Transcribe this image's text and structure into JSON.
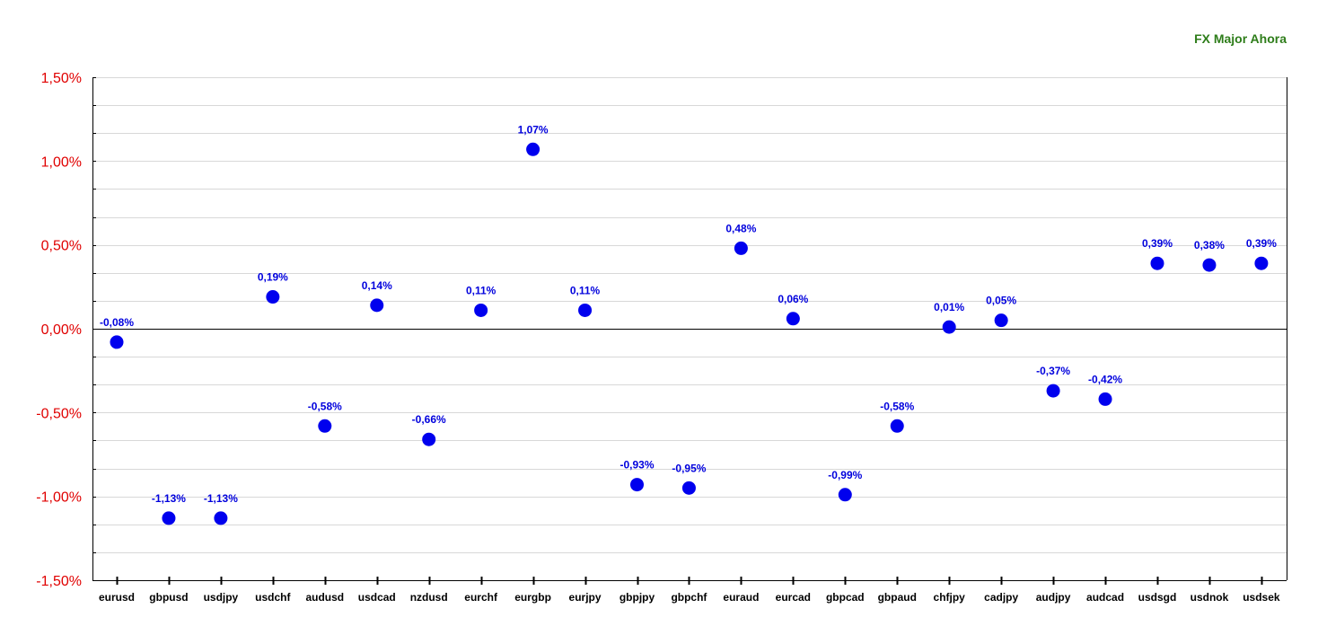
{
  "chart_data": {
    "type": "scatter",
    "title": "FX Major Ahora",
    "xlabel": "",
    "ylabel": "",
    "categories": [
      "eurusd",
      "gbpusd",
      "usdjpy",
      "usdchf",
      "audusd",
      "usdcad",
      "nzdusd",
      "eurchf",
      "eurgbp",
      "eurjpy",
      "gbpjpy",
      "gbpchf",
      "euraud",
      "eurcad",
      "gbpcad",
      "gbpaud",
      "chfjpy",
      "cadjpy",
      "audjpy",
      "audcad",
      "usdsgd",
      "usdnok",
      "usdsek"
    ],
    "values": [
      -0.08,
      -1.13,
      -1.13,
      0.19,
      -0.58,
      0.14,
      -0.66,
      0.11,
      1.07,
      0.11,
      -0.93,
      -0.95,
      0.48,
      0.06,
      -0.99,
      -0.58,
      0.01,
      0.05,
      -0.37,
      -0.42,
      0.39,
      0.38,
      0.39
    ],
    "value_labels": [
      "-0,08%",
      "-1,13%",
      "-1,13%",
      "0,19%",
      "-0,58%",
      "0,14%",
      "-0,66%",
      "0,11%",
      "1,07%",
      "0,11%",
      "-0,93%",
      "-0,95%",
      "0,48%",
      "0,06%",
      "-0,99%",
      "-0,58%",
      "0,01%",
      "0,05%",
      "-0,37%",
      "-0,42%",
      "0,39%",
      "0,38%",
      "0,39%"
    ],
    "yticks": [
      1.5,
      1.0,
      0.5,
      0.0,
      -0.5,
      -1.0,
      -1.5
    ],
    "ytick_labels": [
      "1,50%",
      "1,00%",
      "0,50%",
      "0,00%",
      "-0,50%",
      "-1,00%",
      "-1,50%"
    ],
    "ylim": [
      -1.5,
      1.5
    ],
    "grid": true,
    "legend": "none",
    "colors": {
      "title": "#2e7d1a",
      "ytick": "#e00000",
      "marker": "#0000ee",
      "label": "#0000dd",
      "grid": "#d8d8d8",
      "axis": "#000000"
    }
  }
}
